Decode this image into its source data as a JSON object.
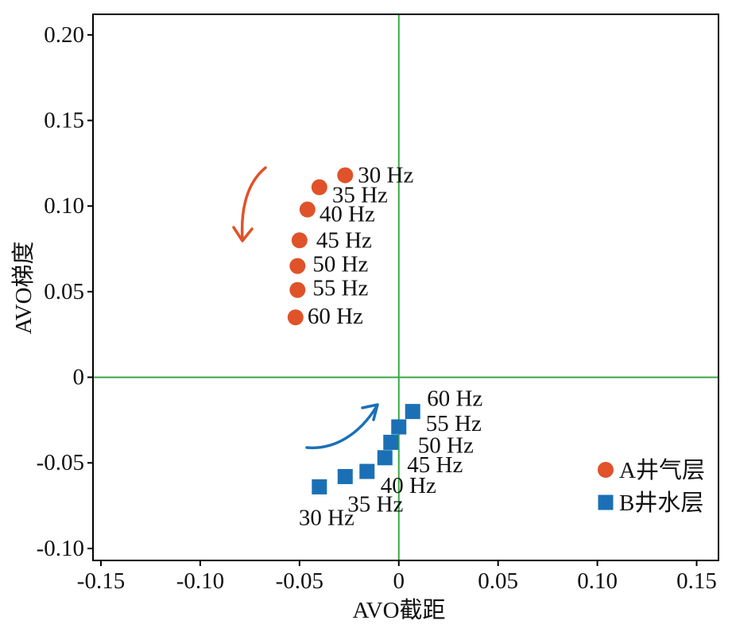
{
  "chart_data": {
    "type": "scatter",
    "xlabel": "AVO截距",
    "ylabel": "AVO梯度",
    "xlim": [
      -0.154,
      0.161
    ],
    "ylim": [
      -0.107,
      0.212
    ],
    "x_ticks": [
      -0.15,
      -0.1,
      -0.05,
      0,
      0.05,
      0.1,
      0.15
    ],
    "x_tick_labels": [
      "-0.15",
      "-0.10",
      "-0.05",
      "0",
      "0.05",
      "0.10",
      "0.15"
    ],
    "y_ticks": [
      0.2,
      0.15,
      0.1,
      0.05,
      0,
      -0.05,
      -0.1
    ],
    "y_tick_labels": [
      "0.20",
      "0.15",
      "0.10",
      "0.05",
      "0",
      "-0.05",
      "-0.10"
    ],
    "grid": false,
    "reference_lines": {
      "x": 0,
      "y": 0,
      "color": "#3aa845"
    },
    "legend_position": "bottom-right",
    "series": [
      {
        "name": "A井气层",
        "marker": "circle",
        "color": "#e0522a",
        "labels": [
          "30 Hz",
          "35 Hz",
          "40 Hz",
          "45 Hz",
          "50 Hz",
          "55 Hz",
          "60 Hz"
        ],
        "x": [
          -0.027,
          -0.04,
          -0.046,
          -0.05,
          -0.051,
          -0.051,
          -0.052
        ],
        "y": [
          0.118,
          0.111,
          0.098,
          0.08,
          0.065,
          0.051,
          0.035
        ]
      },
      {
        "name": "B井水层",
        "marker": "square",
        "color": "#1b70b5",
        "labels": [
          "30 Hz",
          "35 Hz",
          "40 Hz",
          "45 Hz",
          "50 Hz",
          "55 Hz",
          "60 Hz"
        ],
        "x": [
          -0.04,
          -0.027,
          -0.016,
          -0.007,
          -0.004,
          0.0,
          0.007
        ],
        "y": [
          -0.064,
          -0.058,
          -0.055,
          -0.047,
          -0.038,
          -0.029,
          -0.02
        ]
      }
    ]
  }
}
